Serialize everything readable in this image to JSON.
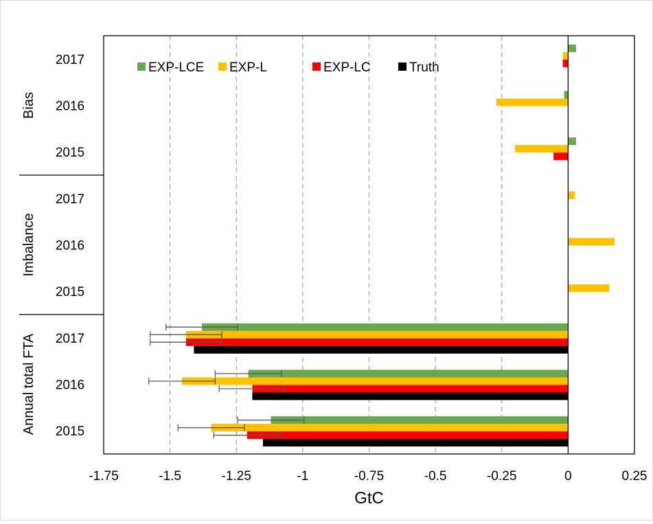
{
  "chart_data": {
    "type": "bar",
    "orientation": "horizontal",
    "xlabel": "GtC",
    "xlim": [
      -1.75,
      0.25
    ],
    "xticks": [
      -1.75,
      -1.5,
      -1.25,
      -1,
      -0.75,
      -0.5,
      -0.25,
      0,
      0.25
    ],
    "xtick_labels": [
      "-1.75",
      "-1.5",
      "-1.25",
      "-1",
      "-0.75",
      "-0.5",
      "-0.25",
      "0",
      "0.25"
    ],
    "grid": "vertical dashed",
    "legend_position": "top-left",
    "series": [
      {
        "name": "EXP-LCE",
        "color": "#6AA84F"
      },
      {
        "name": "EXP-L",
        "color": "#FFC000"
      },
      {
        "name": "EXP-LC",
        "color": "#FF0000"
      },
      {
        "name": "Truth",
        "color": "#000000"
      }
    ],
    "groups": [
      {
        "label": "Bias",
        "categories": [
          {
            "year": "2017",
            "values": {
              "EXP-LCE": 0.03,
              "EXP-L": -0.02,
              "EXP-LC": -0.02,
              "Truth": null
            }
          },
          {
            "year": "2016",
            "values": {
              "EXP-LCE": -0.015,
              "EXP-L": -0.27,
              "EXP-LC": null,
              "Truth": null
            }
          },
          {
            "year": "2015",
            "values": {
              "EXP-LCE": 0.03,
              "EXP-L": -0.2,
              "EXP-LC": -0.055,
              "Truth": null
            }
          }
        ]
      },
      {
        "label": "Imbalance",
        "categories": [
          {
            "year": "2017",
            "values": {
              "EXP-LCE": null,
              "EXP-L": 0.025,
              "EXP-LC": null,
              "Truth": null
            }
          },
          {
            "year": "2016",
            "values": {
              "EXP-LCE": null,
              "EXP-L": 0.175,
              "EXP-LC": null,
              "Truth": null
            }
          },
          {
            "year": "2015",
            "values": {
              "EXP-LCE": null,
              "EXP-L": 0.155,
              "EXP-LC": null,
              "Truth": null
            }
          }
        ]
      },
      {
        "label": "Annual total FTA",
        "categories": [
          {
            "year": "2017",
            "values": {
              "EXP-LCE": -1.38,
              "EXP-L": -1.44,
              "EXP-LC": -1.44,
              "Truth": -1.41
            },
            "errors": {
              "EXP-LCE": 0.135,
              "EXP-L": 0.135,
              "EXP-LC": 0.135
            }
          },
          {
            "year": "2016",
            "values": {
              "EXP-LCE": -1.205,
              "EXP-L": -1.455,
              "EXP-LC": -1.19,
              "Truth": -1.19
            },
            "errors": {
              "EXP-LCE": 0.125,
              "EXP-L": 0.125,
              "EXP-LC": 0.125
            }
          },
          {
            "year": "2015",
            "values": {
              "EXP-LCE": -1.12,
              "EXP-L": -1.345,
              "EXP-LC": -1.21,
              "Truth": -1.15
            },
            "errors": {
              "EXP-LCE": 0.125,
              "EXP-L": 0.125,
              "EXP-LC": 0.125
            }
          }
        ]
      }
    ]
  }
}
